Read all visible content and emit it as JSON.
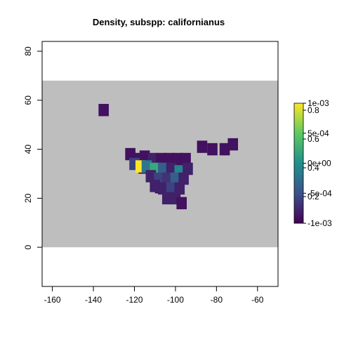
{
  "chart_data": {
    "type": "heatmap",
    "title": "Density, subspp: californianus",
    "xlim": [
      -165,
      -50
    ],
    "ylim": [
      -16,
      84
    ],
    "x_ticks": [
      "-160",
      "-140",
      "-120",
      "-100",
      "-80",
      "-60"
    ],
    "y_ticks": [
      "0",
      "20",
      "40",
      "60",
      "80"
    ],
    "background_region": {
      "x": [
        -165,
        -50
      ],
      "y": [
        0,
        68
      ],
      "color": "#bebebe"
    },
    "grid": false,
    "legend_position": "right",
    "colorbar": {
      "palette": [
        "#440154",
        "#3b528b",
        "#21908d",
        "#5dc963",
        "#fde725"
      ],
      "labels_a": [
        "1e-03",
        "5e-04",
        "0e+00",
        "-5e-04",
        "-1e-03"
      ],
      "labels_b": [
        "0.8",
        "0.6",
        "0.4",
        "0.2"
      ]
    },
    "cells": [
      {
        "x": -135,
        "y": 56,
        "v": 0.05
      },
      {
        "x": -87,
        "y": 41,
        "v": 0.05
      },
      {
        "x": -82,
        "y": 40,
        "v": 0.05
      },
      {
        "x": -76,
        "y": 40,
        "v": 0.05
      },
      {
        "x": -72,
        "y": 42,
        "v": 0.05
      },
      {
        "x": -122,
        "y": 38,
        "v": 0.05
      },
      {
        "x": -118,
        "y": 36,
        "v": 0.05
      },
      {
        "x": -115,
        "y": 37,
        "v": 0.05
      },
      {
        "x": -111,
        "y": 36,
        "v": 0.1
      },
      {
        "x": -107,
        "y": 36,
        "v": 0.05
      },
      {
        "x": -103,
        "y": 36,
        "v": 0.05
      },
      {
        "x": -99,
        "y": 36,
        "v": 0.05
      },
      {
        "x": -95,
        "y": 36,
        "v": 0.05
      },
      {
        "x": -120,
        "y": 34,
        "v": 0.2
      },
      {
        "x": -117,
        "y": 33,
        "v": 1.0
      },
      {
        "x": -114,
        "y": 33,
        "v": 0.4
      },
      {
        "x": -110,
        "y": 32,
        "v": 0.6
      },
      {
        "x": -106,
        "y": 32,
        "v": 0.3
      },
      {
        "x": -102,
        "y": 32,
        "v": 0.1
      },
      {
        "x": -98,
        "y": 31,
        "v": 0.45
      },
      {
        "x": -94,
        "y": 32,
        "v": 0.1
      },
      {
        "x": -112,
        "y": 29,
        "v": 0.1
      },
      {
        "x": -108,
        "y": 28,
        "v": 0.2
      },
      {
        "x": -104,
        "y": 28,
        "v": 0.15
      },
      {
        "x": -100,
        "y": 28,
        "v": 0.3
      },
      {
        "x": -96,
        "y": 28,
        "v": 0.1
      },
      {
        "x": -110,
        "y": 25,
        "v": 0.1
      },
      {
        "x": -106,
        "y": 24,
        "v": 0.1
      },
      {
        "x": -102,
        "y": 24,
        "v": 0.2
      },
      {
        "x": -98,
        "y": 24,
        "v": 0.1
      },
      {
        "x": -104,
        "y": 20,
        "v": 0.1
      },
      {
        "x": -100,
        "y": 20,
        "v": 0.1
      },
      {
        "x": -97,
        "y": 18,
        "v": 0.05
      }
    ]
  }
}
